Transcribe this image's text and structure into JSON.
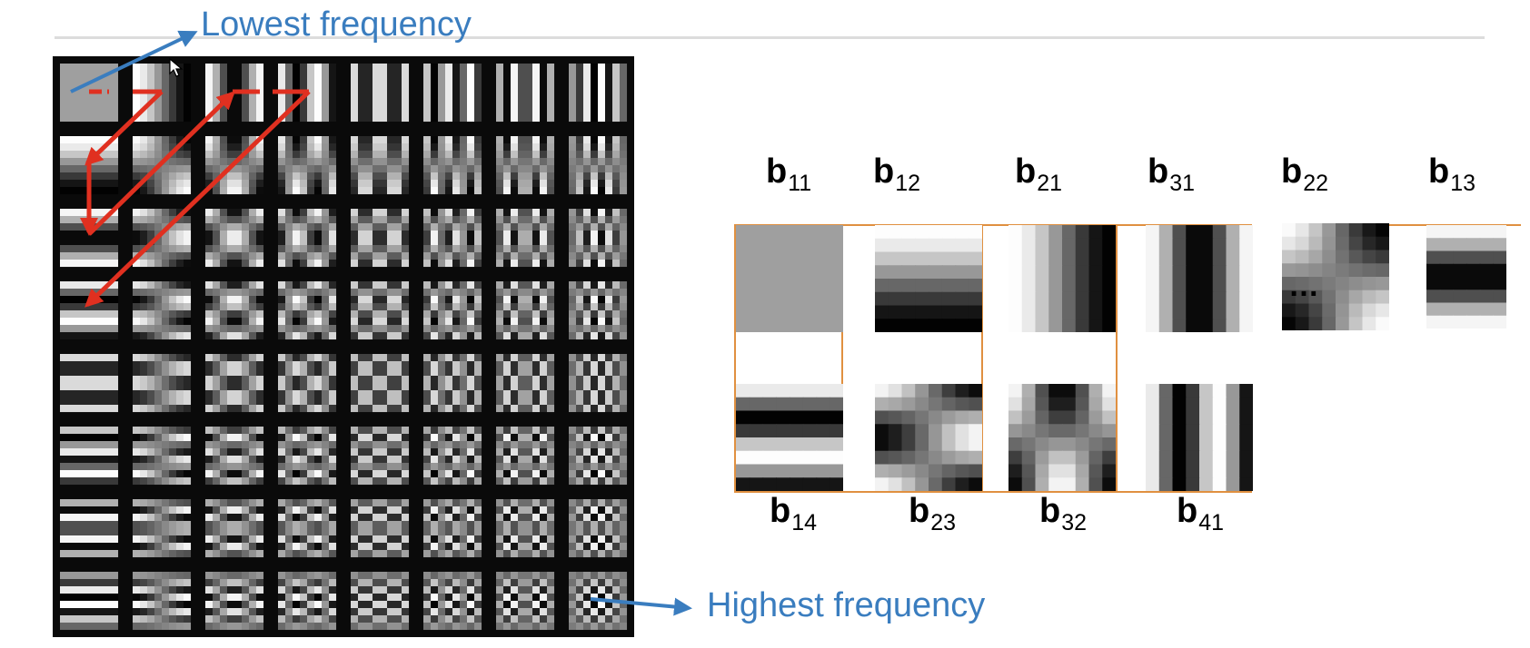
{
  "callouts": {
    "lowest": "Lowest frequency",
    "highest": "Highest frequency"
  },
  "basis_labels_top": [
    {
      "base": "b",
      "sub": "11"
    },
    {
      "base": "b",
      "sub": "12"
    },
    {
      "base": "b",
      "sub": "21"
    },
    {
      "base": "b",
      "sub": "31"
    },
    {
      "base": "b",
      "sub": "22"
    },
    {
      "base": "b",
      "sub": "13"
    }
  ],
  "basis_labels_bottom": [
    {
      "base": "b",
      "sub": "14"
    },
    {
      "base": "b",
      "sub": "23"
    },
    {
      "base": "b",
      "sub": "32"
    },
    {
      "base": "b",
      "sub": "41"
    }
  ],
  "ellipsis": "…",
  "colors": {
    "callout_text": "#3a7dbf",
    "callout_arrow": "#3a7dbf",
    "zigzag_arrow": "#e03020",
    "frame": "#e09040",
    "grid_background": "#0a0a0a"
  },
  "grid_size": 8
}
